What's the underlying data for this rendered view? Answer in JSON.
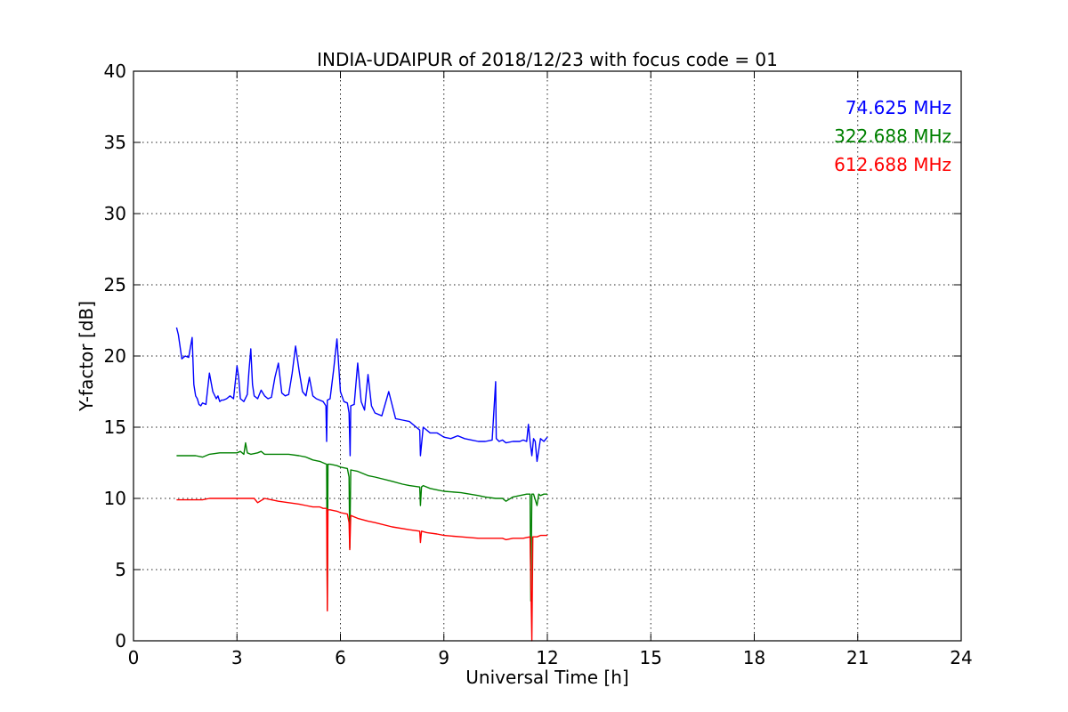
{
  "chart_data": {
    "type": "line",
    "title": "INDIA-UDAIPUR of 2018/12/23 with focus code = 01",
    "xlabel": "Universal Time [h]",
    "ylabel": "Y-factor [dB]",
    "xlim": [
      0,
      24
    ],
    "ylim": [
      0,
      40
    ],
    "xticks": [
      0,
      3,
      6,
      9,
      12,
      15,
      18,
      21,
      24
    ],
    "yticks": [
      0,
      5,
      10,
      15,
      20,
      25,
      30,
      35,
      40
    ],
    "grid": true,
    "legend_position": "top-right",
    "series": [
      {
        "name": "74.625 MHz",
        "color": "#0000ff",
        "x": [
          1.25,
          1.3,
          1.4,
          1.5,
          1.6,
          1.7,
          1.75,
          1.8,
          1.85,
          1.9,
          1.95,
          2.0,
          2.1,
          2.2,
          2.3,
          2.4,
          2.45,
          2.5,
          2.55,
          2.6,
          2.7,
          2.8,
          2.9,
          3.0,
          3.05,
          3.1,
          3.2,
          3.3,
          3.35,
          3.4,
          3.45,
          3.5,
          3.6,
          3.7,
          3.8,
          3.9,
          4.0,
          4.1,
          4.2,
          4.3,
          4.4,
          4.5,
          4.6,
          4.7,
          4.8,
          4.9,
          5.0,
          5.1,
          5.2,
          5.3,
          5.4,
          5.5,
          5.58,
          5.6,
          5.62,
          5.7,
          5.8,
          5.9,
          6.0,
          6.1,
          6.2,
          6.25,
          6.28,
          6.3,
          6.4,
          6.5,
          6.6,
          6.7,
          6.8,
          6.9,
          7.0,
          7.2,
          7.4,
          7.6,
          7.8,
          8.0,
          8.2,
          8.3,
          8.32,
          8.4,
          8.6,
          8.8,
          9.0,
          9.2,
          9.4,
          9.6,
          9.8,
          10.0,
          10.2,
          10.4,
          10.5,
          10.52,
          10.6,
          10.7,
          10.8,
          11.0,
          11.2,
          11.3,
          11.4,
          11.45,
          11.5,
          11.55,
          11.6,
          11.65,
          11.7,
          11.8,
          11.9,
          12.0
        ],
        "values": [
          22.0,
          21.5,
          19.8,
          20.0,
          19.9,
          21.3,
          18.0,
          17.2,
          17.0,
          16.6,
          16.5,
          16.7,
          16.6,
          18.8,
          17.5,
          17.0,
          17.2,
          16.8,
          16.9,
          16.9,
          17.0,
          17.2,
          17.0,
          19.3,
          18.5,
          17.0,
          16.8,
          17.3,
          19.0,
          20.5,
          18.0,
          17.2,
          17.0,
          17.6,
          17.2,
          17.0,
          17.1,
          18.5,
          19.5,
          17.4,
          17.2,
          17.3,
          18.8,
          20.7,
          19.0,
          17.5,
          17.2,
          18.5,
          17.2,
          17.0,
          16.9,
          16.8,
          16.5,
          14.0,
          16.9,
          17.0,
          19.0,
          21.2,
          17.5,
          16.8,
          16.7,
          16.0,
          13.0,
          16.5,
          16.6,
          19.5,
          16.8,
          16.2,
          18.7,
          16.5,
          16.0,
          15.8,
          17.5,
          15.6,
          15.5,
          15.4,
          15.0,
          14.8,
          13.0,
          15.0,
          14.6,
          14.6,
          14.3,
          14.2,
          14.4,
          14.2,
          14.1,
          14.0,
          14.0,
          14.1,
          18.2,
          14.2,
          14.0,
          14.1,
          13.9,
          14.0,
          14.0,
          14.1,
          14.0,
          15.2,
          14.0,
          13.0,
          14.2,
          14.0,
          12.6,
          14.2,
          14.0,
          14.3
        ]
      },
      {
        "name": "322.688 MHz",
        "color": "#008000",
        "x": [
          1.25,
          1.5,
          1.8,
          2.0,
          2.2,
          2.5,
          2.8,
          3.0,
          3.1,
          3.2,
          3.25,
          3.3,
          3.4,
          3.6,
          3.7,
          3.8,
          4.0,
          4.2,
          4.5,
          4.8,
          5.0,
          5.1,
          5.2,
          5.4,
          5.5,
          5.6,
          5.62,
          5.64,
          5.7,
          5.9,
          6.0,
          6.2,
          6.25,
          6.27,
          6.3,
          6.5,
          6.8,
          7.0,
          7.5,
          7.8,
          8.0,
          8.3,
          8.32,
          8.35,
          8.4,
          8.6,
          8.8,
          9.0,
          9.5,
          10.0,
          10.2,
          10.5,
          10.7,
          10.8,
          11.0,
          11.2,
          11.4,
          11.5,
          11.52,
          11.55,
          11.6,
          11.7,
          11.75,
          11.8,
          11.9,
          12.0
        ],
        "values": [
          13.0,
          13.0,
          13.0,
          12.9,
          13.1,
          13.2,
          13.2,
          13.2,
          13.3,
          13.1,
          13.9,
          13.2,
          13.1,
          13.2,
          13.3,
          13.1,
          13.1,
          13.1,
          13.1,
          13.0,
          12.9,
          12.8,
          12.7,
          12.6,
          12.5,
          12.4,
          2.2,
          12.4,
          12.4,
          12.3,
          12.2,
          12.1,
          11.5,
          6.5,
          12.0,
          11.9,
          11.6,
          11.5,
          11.2,
          11.0,
          10.9,
          10.8,
          9.5,
          10.8,
          10.9,
          10.7,
          10.6,
          10.5,
          10.4,
          10.2,
          10.1,
          10.0,
          10.0,
          9.8,
          10.1,
          10.2,
          10.3,
          10.3,
          2.8,
          10.3,
          10.3,
          9.5,
          10.3,
          10.2,
          10.3,
          10.3
        ]
      },
      {
        "name": "612.688 MHz",
        "color": "#ff0000",
        "x": [
          1.25,
          1.5,
          1.8,
          2.0,
          2.2,
          2.5,
          2.8,
          3.0,
          3.2,
          3.5,
          3.6,
          3.8,
          4.0,
          4.2,
          4.5,
          4.8,
          5.0,
          5.2,
          5.4,
          5.5,
          5.6,
          5.62,
          5.64,
          5.7,
          5.9,
          6.0,
          6.2,
          6.25,
          6.27,
          6.3,
          6.5,
          6.8,
          7.0,
          7.5,
          8.0,
          8.3,
          8.32,
          8.35,
          8.5,
          8.8,
          9.0,
          9.5,
          10.0,
          10.5,
          10.7,
          10.8,
          11.0,
          11.3,
          11.5,
          11.55,
          11.58,
          11.62,
          11.7,
          11.8,
          11.9,
          12.0
        ],
        "values": [
          9.9,
          9.9,
          9.9,
          9.9,
          10.0,
          10.0,
          10.0,
          10.0,
          10.0,
          10.0,
          9.7,
          10.0,
          9.9,
          9.8,
          9.7,
          9.6,
          9.5,
          9.4,
          9.4,
          9.3,
          9.3,
          2.1,
          9.2,
          9.2,
          9.1,
          9.0,
          8.9,
          8.3,
          6.4,
          8.8,
          8.6,
          8.4,
          8.3,
          8.0,
          7.8,
          7.7,
          6.9,
          7.7,
          7.6,
          7.5,
          7.4,
          7.3,
          7.2,
          7.2,
          7.2,
          7.1,
          7.2,
          7.2,
          7.3,
          0.0,
          7.3,
          7.3,
          7.3,
          7.4,
          7.4,
          7.4
        ]
      }
    ]
  }
}
